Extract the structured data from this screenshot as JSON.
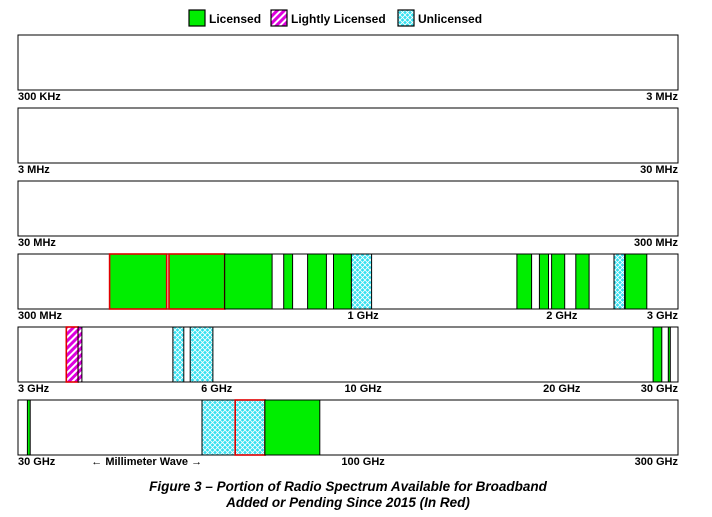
{
  "legend": [
    {
      "label": "Licensed",
      "type": "licensed"
    },
    {
      "label": "Lightly Licensed",
      "type": "lightly"
    },
    {
      "label": "Unlicensed",
      "type": "unlicensed"
    }
  ],
  "colors": {
    "licensed": "#00ee00",
    "lightly": "#dd00dd",
    "unlicensed": "#33e0f0",
    "added": "#e00000",
    "outline": "#000000"
  },
  "caption": {
    "line1": "Figure 3 – Portion of Radio Spectrum Available for Broadband",
    "line2": "Added or Pending Since 2015 (In Red)"
  },
  "chart_data": {
    "type": "bar",
    "scale": "log",
    "rows": [
      {
        "range": [
          300000.0,
          3000000.0
        ],
        "labels": [
          {
            "text": "300 KHz",
            "f": 300000.0
          },
          {
            "text": "3 MHz",
            "f": 3000000.0
          }
        ],
        "bands": []
      },
      {
        "range": [
          3000000.0,
          30000000.0
        ],
        "labels": [
          {
            "text": "3 MHz",
            "f": 3000000.0
          },
          {
            "text": "30 MHz",
            "f": 30000000.0
          }
        ],
        "bands": []
      },
      {
        "range": [
          30000000.0,
          300000000.0
        ],
        "labels": [
          {
            "text": "30 MHz",
            "f": 30000000.0
          },
          {
            "text": "300 MHz",
            "f": 300000000.0
          }
        ],
        "bands": []
      },
      {
        "range": [
          300000000.0,
          3000000000.0
        ],
        "labels": [
          {
            "text": "300 MHz",
            "f": 300000000.0
          },
          {
            "text": "1 GHz",
            "f": 1000000000.0
          },
          {
            "text": "2 GHz",
            "f": 2000000000.0
          },
          {
            "text": "3 GHz",
            "f": 3000000000.0
          }
        ],
        "bands": [
          {
            "start": 413000000.0,
            "end": 504000000.0,
            "type": "licensed",
            "added": true
          },
          {
            "start": 508000000.0,
            "end": 617000000.0,
            "type": "licensed",
            "added": true
          },
          {
            "start": 617000000.0,
            "end": 728000000.0,
            "type": "licensed",
            "added": false
          },
          {
            "start": 758000000.0,
            "end": 782000000.0,
            "type": "licensed",
            "added": false
          },
          {
            "start": 824000000.0,
            "end": 880000000.0,
            "type": "licensed",
            "added": false
          },
          {
            "start": 902000000.0,
            "end": 960000000.0,
            "type": "licensed",
            "added": false
          },
          {
            "start": 960000000.0,
            "end": 1030000000.0,
            "type": "unlicensed",
            "added": false
          },
          {
            "start": 1710000000.0,
            "end": 1800000000.0,
            "type": "licensed",
            "added": false
          },
          {
            "start": 1850000000.0,
            "end": 1910000000.0,
            "type": "licensed",
            "added": false
          },
          {
            "start": 1930000000.0,
            "end": 2020000000.0,
            "type": "licensed",
            "added": false
          },
          {
            "start": 2100000000.0,
            "end": 2200000000.0,
            "type": "licensed",
            "added": false
          },
          {
            "start": 2400000000.0,
            "end": 2490000000.0,
            "type": "unlicensed",
            "added": false
          },
          {
            "start": 2495000000.0,
            "end": 2690000000.0,
            "type": "licensed",
            "added": false
          }
        ]
      },
      {
        "range": [
          3000000000.0,
          30000000000.0
        ],
        "labels": [
          {
            "text": "3 GHz",
            "f": 3000000000.0
          },
          {
            "text": "6 GHz",
            "f": 6000000000.0
          },
          {
            "text": "10 GHz",
            "f": 10000000000.0
          },
          {
            "text": "20 GHz",
            "f": 20000000000.0
          },
          {
            "text": "30 GHz",
            "f": 30000000000.0
          }
        ],
        "bands": [
          {
            "start": 3550000000.0,
            "end": 3700000000.0,
            "type": "lightly",
            "added": true
          },
          {
            "start": 3700000000.0,
            "end": 3750000000.0,
            "type": "lightly",
            "added": false
          },
          {
            "start": 5150000000.0,
            "end": 5350000000.0,
            "type": "unlicensed",
            "added": false
          },
          {
            "start": 5470000000.0,
            "end": 5920000000.0,
            "type": "unlicensed",
            "added": false
          },
          {
            "start": 27500000000.0,
            "end": 28350000000.0,
            "type": "licensed",
            "added": false
          },
          {
            "start": 29000000000.0,
            "end": 29200000000.0,
            "type": "licensed",
            "added": false
          }
        ]
      },
      {
        "range": [
          30000000000.0,
          300000000000.0
        ],
        "labels": [
          {
            "text": "30 GHz",
            "f": 30000000000.0
          },
          {
            "text": "100 GHz",
            "f": 100000000000.0
          },
          {
            "text": "300 GHz",
            "f": 300000000000.0
          }
        ],
        "note": {
          "text": "← Millimeter Wave →",
          "f": 47000000000.0
        },
        "bands": [
          {
            "start": 31000000000.0,
            "end": 31300000000.0,
            "type": "licensed",
            "added": false
          },
          {
            "start": 57000000000.0,
            "end": 64000000000.0,
            "type": "unlicensed",
            "added": false
          },
          {
            "start": 64000000000.0,
            "end": 71000000000.0,
            "type": "unlicensed",
            "added": true
          },
          {
            "start": 71000000000.0,
            "end": 86000000000.0,
            "type": "licensed",
            "added": false
          }
        ]
      }
    ]
  }
}
